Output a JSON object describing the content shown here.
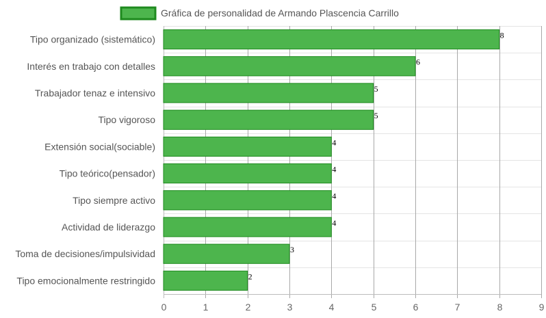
{
  "chart_data": {
    "type": "bar",
    "orientation": "horizontal",
    "categories": [
      "Tipo organizado (sistemático)",
      "Interés en trabajo con detalles",
      "Trabajador tenaz e intensivo",
      "Tipo vigoroso",
      "Extensión social(sociable)",
      "Tipo teórico(pensador)",
      "Tipo siempre activo",
      "Actividad de liderazgo",
      "Toma de decisiones/impulsividad",
      "Tipo emocionalmente restringido"
    ],
    "series": [
      {
        "name": "Gráfica de personalidad de Armando Plascencia Carrillo",
        "values": [
          8,
          6,
          5,
          5,
          4,
          4,
          4,
          4,
          3,
          2
        ],
        "color": "#4db54d",
        "border_color": "#1e8a1e"
      }
    ],
    "xlim": [
      0,
      9
    ],
    "x_ticks": [
      "0",
      "1",
      "2",
      "3",
      "4",
      "5",
      "6",
      "7",
      "8",
      "9"
    ],
    "data_labels": [
      "8",
      "6",
      "5",
      "5",
      "4",
      "4",
      "4",
      "4",
      "3",
      "2"
    ],
    "grid": true,
    "legend_position": "top"
  }
}
